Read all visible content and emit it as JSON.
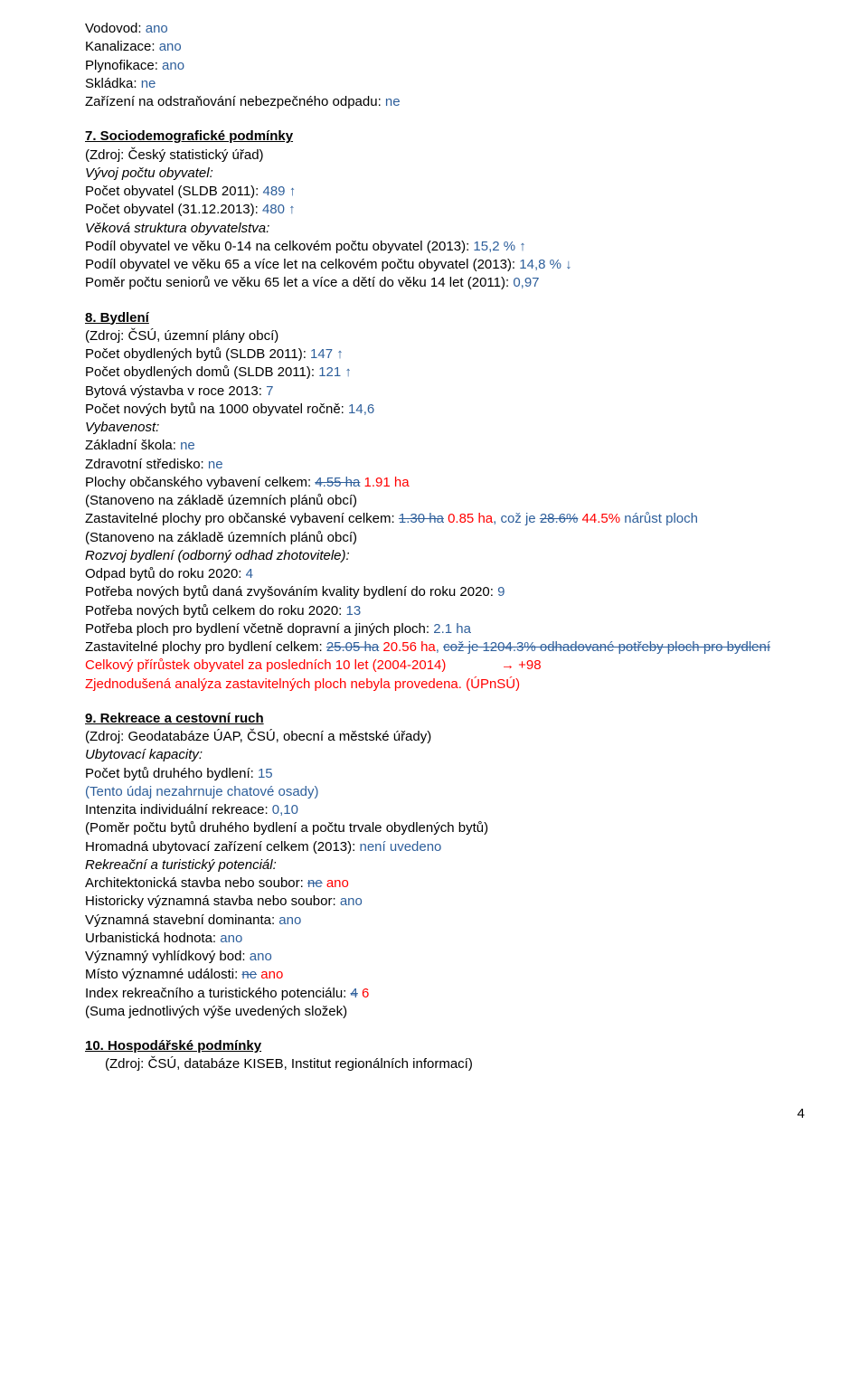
{
  "intro": {
    "l1a": "Vodovod: ",
    "l1b": "ano",
    "l2a": "Kanalizace: ",
    "l2b": "ano",
    "l3a": "Plynofikace: ",
    "l3b": "ano",
    "l4a": "Skládka: ",
    "l4b": "ne",
    "l5a": "Zařízení na odstraňování nebezpečného odpadu: ",
    "l5b": "ne"
  },
  "s7": {
    "head": "7. Sociodemografické podmínky",
    "src": "(Zdroj: Český statistický úřad)",
    "sub1": "Vývoj počtu obyvatel:",
    "l1a": "Počet obyvatel (SLDB 2011): ",
    "l1b": "489 ↑",
    "l2a": "Počet obyvatel (31.12.2013): ",
    "l2b": "480 ↑",
    "sub2": "Věková struktura obyvatelstva:",
    "l3a": "Podíl obyvatel ve věku 0-14 na celkovém počtu obyvatel (2013): ",
    "l3b": "15,2 % ↑",
    "l4a": "Podíl obyvatel ve věku 65 a více let na celkovém počtu obyvatel (2013): ",
    "l4b": "14,8 % ↓",
    "l5a": "Poměr počtu seniorů ve věku 65 let a více a dětí do věku 14 let (2011): ",
    "l5b": "0,97"
  },
  "s8": {
    "head": "8. Bydlení",
    "src": "(Zdroj: ČSÚ, územní plány obcí)",
    "l1a": "Počet obydlených bytů (SLDB 2011): ",
    "l1b": "147 ↑",
    "l2a": "Počet obydlených domů (SLDB 2011): ",
    "l2b": "121 ↑",
    "l3a": "Bytová výstavba v roce 2013: ",
    "l3b": "7",
    "l4a": "Počet nových bytů na 1000 obyvatel ročně: ",
    "l4b": "14,6",
    "sub1": "Vybavenost:",
    "l5a": "Základní škola: ",
    "l5b": "ne",
    "l6a": "Zdravotní středisko: ",
    "l6b": "ne",
    "l7a": "Plochy občanského vybavení celkem: ",
    "l7s": "4.55 ha",
    "l7sp": " ",
    "l7b": "1.91 ha",
    "note1": "(Stanoveno na základě územních plánů obcí)",
    "l8a": "Zastavitelné plochy pro občanské vybavení celkem: ",
    "l8s": "1.30 ha",
    "l8sp": " ",
    "l8b": "0.85 ha",
    "l8c": ", což je ",
    "l8s2": "28.6%",
    "l8sp2": " ",
    "l8d": "44.5%",
    "l8e": " nárůst ploch",
    "note2": "(Stanoveno na základě územních plánů obcí)",
    "sub2": "Rozvoj bydlení (odborný odhad zhotovitele):",
    "l9a": "Odpad bytů do roku 2020: ",
    "l9b": "4",
    "l10a": "Potřeba nových bytů daná zvyšováním kvality bydlení do roku 2020: ",
    "l10b": "9",
    "l11a": "Potřeba nových bytů celkem do roku 2020: ",
    "l11b": "13",
    "l12a": "Potřeba ploch pro bydlení včetně dopravní a jiných ploch: ",
    "l12b": "2.1 ha",
    "l13a": "Zastavitelné plochy pro bydlení celkem: ",
    "l13s": "25.05 ha",
    "l13sp": " ",
    "l13b": "20.56 ha",
    "l13c": ", ",
    "l13s2": "což je 1204.3% odhadované potřeby ploch pro bydlení",
    "l14a": "Celkový přírůstek obyvatel za posledních 10 let (2004-2014)",
    "l14arr": "→ ",
    "l14b": "+98",
    "l15a": "Zjednodušená analýza zastavitelných ploch nebyla provedena.",
    "l15b": " (ÚPnSÚ)"
  },
  "s9": {
    "head": "9. Rekreace a cestovní ruch",
    "src": "(Zdroj: Geodatabáze ÚAP, ČSÚ, obecní a městské úřady)",
    "sub1": "Ubytovací kapacity:",
    "l1a": "Počet bytů druhého bydlení: ",
    "l1b": "15",
    "note1": "(Tento údaj nezahrnuje chatové osady)",
    "l2a": "Intenzita individuální rekreace: ",
    "l2b": "0,10",
    "note2": "(Poměr počtu bytů druhého bydlení a počtu trvale obydlených bytů)",
    "l3a": "Hromadná ubytovací zařízení celkem (2013): ",
    "l3b": "není uvedeno",
    "sub2": "Rekreační a turistický potenciál:",
    "l4a": "Architektonická stavba nebo soubor: ",
    "l4s": "ne",
    "l4sp": " ",
    "l4b": "ano",
    "l5a": "Historicky významná stavba nebo soubor: ",
    "l5b": "ano",
    "l6a": "Významná stavební dominanta: ",
    "l6b": "ano",
    "l7a": "Urbanistická hodnota: ",
    "l7b": "ano",
    "l8a": "Významný vyhlídkový bod: ",
    "l8b": "ano",
    "l9a": "Místo významné události: ",
    "l9s": "ne",
    "l9sp": " ",
    "l9b": "ano",
    "l10a": "Index rekreačního a turistického potenciálu: ",
    "l10s": "4",
    "l10sp": " ",
    "l10b": "6",
    "note3": "(Suma jednotlivých výše uvedených složek)"
  },
  "s10": {
    "head": "10. Hospodářské podmínky",
    "src": "(Zdroj: ČSÚ, databáze KISEB, Institut regionálních informací)"
  },
  "pageNum": "4"
}
